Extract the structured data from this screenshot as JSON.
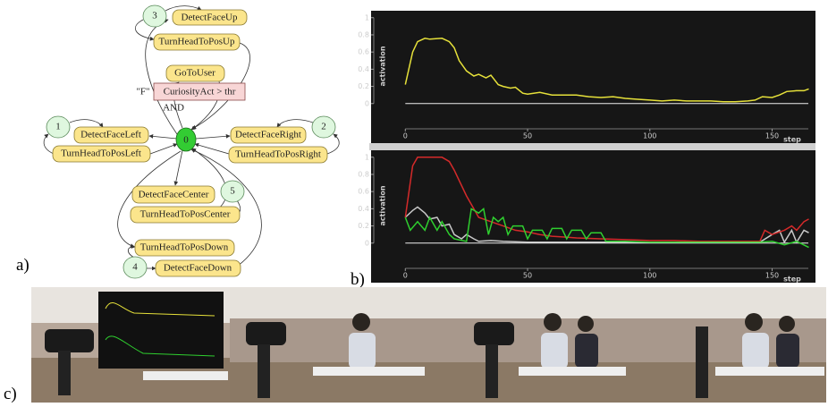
{
  "panel_labels": [
    "a)",
    "b)",
    "c)"
  ],
  "diagram": {
    "nodes": [
      "0",
      "1",
      "2",
      "3",
      "4",
      "5"
    ],
    "states": [
      "DetectFaceUp",
      "TurnHeadToPosUp",
      "GoToUser",
      "DetectFaceLeft",
      "TurnHeadToPosLeft",
      "DetectFaceRight",
      "TurnHeadToPosRight",
      "DetectFaceCenter",
      "TurnHeadToPosCenter",
      "TurnHeadToPosDown",
      "DetectFaceDown"
    ],
    "condition": "CuriosityAct > thr",
    "edge_label": "\"F\"",
    "and_label": "AND"
  },
  "chart_data": [
    {
      "type": "line",
      "x_label": "step",
      "y_label": "activation",
      "xlim": [
        -14,
        167
      ],
      "ylim": [
        -0.19,
        1.06
      ],
      "xticks": [
        0,
        50,
        100,
        150
      ],
      "yticks": [
        0,
        0.2,
        0.4,
        0.6,
        0.8,
        1
      ],
      "background": "#161616",
      "series": [
        {
          "color": "#e6e13a",
          "x": [
            0,
            3,
            5,
            8,
            10,
            15,
            18,
            20,
            22,
            25,
            28,
            30,
            33,
            35,
            38,
            40,
            43,
            45,
            48,
            50,
            55,
            60,
            65,
            70,
            75,
            80,
            85,
            90,
            95,
            100,
            105,
            110,
            115,
            120,
            125,
            130,
            135,
            140,
            143,
            146,
            150,
            153,
            156,
            160,
            163,
            165
          ],
          "values": [
            0.22,
            0.6,
            0.72,
            0.76,
            0.75,
            0.76,
            0.72,
            0.65,
            0.5,
            0.38,
            0.32,
            0.34,
            0.3,
            0.33,
            0.22,
            0.2,
            0.18,
            0.19,
            0.12,
            0.11,
            0.13,
            0.1,
            0.1,
            0.1,
            0.08,
            0.07,
            0.08,
            0.06,
            0.05,
            0.04,
            0.03,
            0.04,
            0.03,
            0.03,
            0.03,
            0.02,
            0.02,
            0.03,
            0.04,
            0.08,
            0.07,
            0.1,
            0.14,
            0.15,
            0.15,
            0.17
          ]
        }
      ]
    },
    {
      "type": "line",
      "x_label": "step",
      "y_label": "activation",
      "xlim": [
        -14,
        167
      ],
      "ylim": [
        -0.19,
        1.06
      ],
      "xticks": [
        0,
        50,
        100,
        150
      ],
      "yticks": [
        0,
        0.2,
        0.4,
        0.6,
        0.8,
        1
      ],
      "background": "#161616",
      "series": [
        {
          "color": "#c8c8c8",
          "x": [
            0,
            3,
            5,
            8,
            10,
            13,
            15,
            18,
            20,
            23,
            25,
            28,
            30,
            35,
            40,
            50,
            60,
            80,
            100,
            140,
            145,
            150,
            153,
            155,
            158,
            160,
            163,
            165
          ],
          "values": [
            0.3,
            0.38,
            0.42,
            0.35,
            0.28,
            0.3,
            0.2,
            0.22,
            0.1,
            0.05,
            0.1,
            0.05,
            0.02,
            0.03,
            0.02,
            0.01,
            0.01,
            0.01,
            0.01,
            0.01,
            0.01,
            0.1,
            0.15,
            0.01,
            0.15,
            0.01,
            0.15,
            0.12
          ]
        },
        {
          "color": "#d42a2a",
          "x": [
            0,
            3,
            5,
            15,
            18,
            20,
            25,
            28,
            30,
            35,
            40,
            45,
            50,
            55,
            60,
            65,
            70,
            80,
            90,
            100,
            110,
            120,
            130,
            140,
            145,
            147,
            150,
            155,
            158,
            160,
            163,
            165
          ],
          "values": [
            0.3,
            0.9,
            1.0,
            1.0,
            0.95,
            0.85,
            0.55,
            0.4,
            0.3,
            0.25,
            0.2,
            0.15,
            0.13,
            0.1,
            0.08,
            0.07,
            0.06,
            0.05,
            0.04,
            0.03,
            0.03,
            0.02,
            0.02,
            0.02,
            0.02,
            0.15,
            0.1,
            0.15,
            0.2,
            0.15,
            0.25,
            0.28
          ]
        },
        {
          "color": "#2fcf2f",
          "x": [
            0,
            2,
            5,
            8,
            10,
            13,
            15,
            18,
            20,
            25,
            27,
            30,
            32,
            34,
            36,
            38,
            40,
            42,
            44,
            48,
            50,
            52,
            56,
            58,
            60,
            64,
            66,
            68,
            72,
            74,
            76,
            80,
            82,
            90,
            100,
            120,
            140,
            145,
            150,
            155,
            160,
            165
          ],
          "values": [
            0.3,
            0.15,
            0.25,
            0.15,
            0.3,
            0.15,
            0.25,
            0.1,
            0.05,
            0.02,
            0.4,
            0.35,
            0.4,
            0.1,
            0.3,
            0.25,
            0.3,
            0.1,
            0.2,
            0.2,
            0.05,
            0.15,
            0.15,
            0.05,
            0.17,
            0.17,
            0.05,
            0.15,
            0.15,
            0.05,
            0.12,
            0.12,
            0.02,
            0.02,
            0.01,
            0.01,
            0.01,
            0.01,
            0.02,
            -0.02,
            0.02,
            -0.05
          ]
        }
      ]
    }
  ]
}
